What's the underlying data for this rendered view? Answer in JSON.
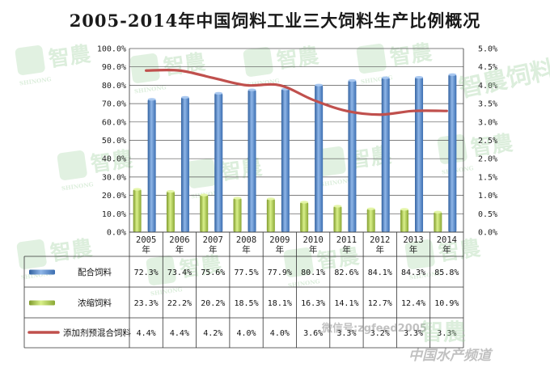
{
  "chart_data": {
    "type": "bar+line",
    "title": "2005-2014年中国饲料工业三大饲料生产比例概况",
    "categories": [
      "2005\n年",
      "2006\n年",
      "2007\n年",
      "2008\n年",
      "2009\n年",
      "2010\n年",
      "2011\n年",
      "2012\n年",
      "2013\n年",
      "2014\n年"
    ],
    "left_axis": {
      "ylim": [
        0,
        100
      ],
      "ticks": [
        "0.0%",
        "10.0%",
        "20.0%",
        "30.0%",
        "40.0%",
        "50.0%",
        "60.0%",
        "70.0%",
        "80.0%",
        "90.0%",
        "100.0%"
      ]
    },
    "right_axis": {
      "ylim": [
        0,
        5
      ],
      "ticks": [
        "0.0%",
        "0.5%",
        "1.0%",
        "1.5%",
        "2.0%",
        "2.5%",
        "3.0%",
        "3.5%",
        "4.0%",
        "4.5%",
        "5.0%"
      ]
    },
    "series": [
      {
        "name": "配合饲料",
        "kind": "bar",
        "axis": "left",
        "color": "#4f81bd",
        "values": [
          72.3,
          73.4,
          75.6,
          77.5,
          77.9,
          80.1,
          82.6,
          84.1,
          84.3,
          85.8
        ],
        "labels": [
          "72.3%",
          "73.4%",
          "75.6%",
          "77.5%",
          "77.9%",
          "80.1%",
          "82.6%",
          "84.1%",
          "84.3%",
          "85.8%"
        ]
      },
      {
        "name": "浓缩饲料",
        "kind": "bar",
        "axis": "left",
        "color": "#9bbb59",
        "values": [
          23.3,
          22.2,
          20.2,
          18.5,
          18.1,
          16.3,
          14.1,
          12.7,
          12.4,
          10.9
        ],
        "labels": [
          "23.3%",
          "22.2%",
          "20.2%",
          "18.5%",
          "18.1%",
          "16.3%",
          "14.1%",
          "12.7%",
          "12.4%",
          "10.9%"
        ]
      },
      {
        "name": "添加剂预混合饲料",
        "kind": "line",
        "axis": "right",
        "color": "#c0504d",
        "values": [
          4.4,
          4.4,
          4.2,
          4.0,
          4.0,
          3.6,
          3.3,
          3.2,
          3.3,
          3.3
        ],
        "labels": [
          "4.4%",
          "4.4%",
          "4.2%",
          "4.0%",
          "4.0%",
          "3.6%",
          "3.3%",
          "3.2%",
          "3.3%",
          "3.3%"
        ]
      }
    ],
    "grid": true,
    "legend": "data-table"
  },
  "watermarks": {
    "brand": "智農",
    "brand2": "智農饲料",
    "logo_text": "SHINONG",
    "wechat": "微信号:zgfeed2005",
    "site": "中国水产频道"
  }
}
